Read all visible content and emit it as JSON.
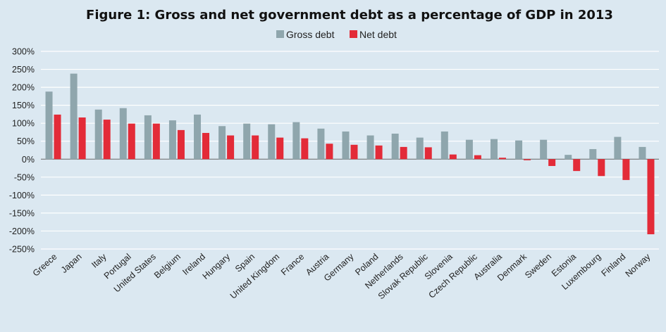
{
  "colors": {
    "gross": "#8fa6ad",
    "net": "#e32b38",
    "background": "#dbe8f1"
  },
  "chart_data": {
    "type": "bar",
    "title": "Figure 1: Gross  and net government debt as a percentage of GDP in 2013",
    "legend_position": "top-center",
    "grid": true,
    "ylim": [
      -250,
      300
    ],
    "yticks": [
      300,
      250,
      200,
      150,
      100,
      50,
      0,
      -50,
      -100,
      -150,
      -200,
      -250
    ],
    "ytick_labels": [
      "300%",
      "250%",
      "200%",
      "150%",
      "100%",
      "50%",
      "0%",
      "-50%",
      "-100%",
      "-150%",
      "-200%",
      "-250%"
    ],
    "categories": [
      "Greece",
      "Japan",
      "Italy",
      "Portugal",
      "United States",
      "Belgium",
      "Ireland",
      "Hungary",
      "Spain",
      "United Kingdom",
      "France",
      "Austria",
      "Germany",
      "Poland",
      "Netherlands",
      "Slovak Republic",
      "Slovenia",
      "Czech Republic",
      "Australia",
      "Denmark",
      "Sweden",
      "Estonia",
      "Luxembourg",
      "Finland",
      "Norway"
    ],
    "series": [
      {
        "name": "Gross debt",
        "values": [
          188,
          238,
          138,
          142,
          122,
          108,
          124,
          92,
          99,
          97,
          103,
          85,
          77,
          66,
          71,
          60,
          77,
          54,
          56,
          52,
          54,
          12,
          28,
          62,
          34
        ]
      },
      {
        "name": "Net debt",
        "values": [
          124,
          116,
          110,
          99,
          99,
          81,
          73,
          66,
          66,
          60,
          58,
          43,
          40,
          38,
          34,
          33,
          13,
          11,
          4,
          -3,
          -19,
          -33,
          -47,
          -58,
          -209
        ]
      }
    ]
  }
}
